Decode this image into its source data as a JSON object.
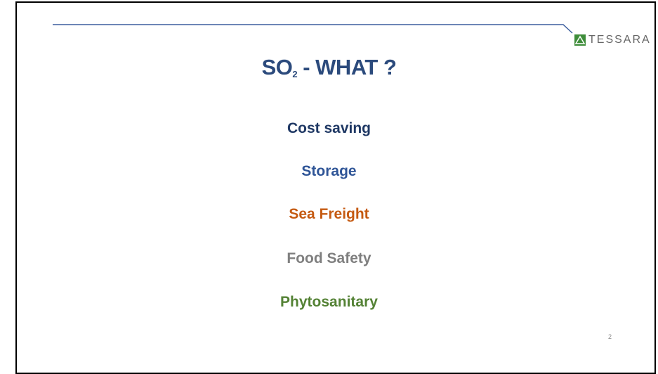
{
  "slide": {
    "title": {
      "main": "SO",
      "subscript": "2",
      "rest": " - WHAT ?"
    },
    "items": [
      "Cost saving",
      "Storage",
      "Sea Freight",
      "Food Safety",
      "Phytosanitary"
    ],
    "logo": "TESSARA",
    "page_number": "2"
  }
}
